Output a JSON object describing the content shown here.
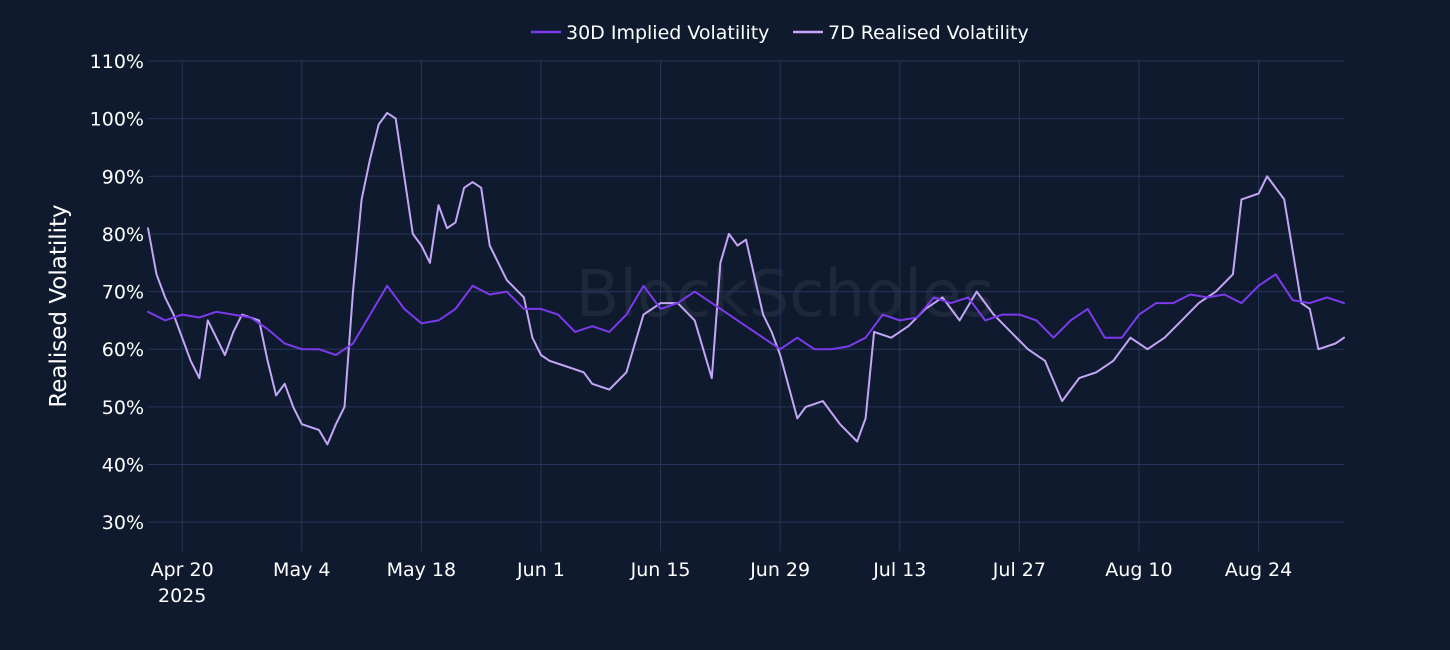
{
  "chart_data": {
    "type": "line",
    "title": "",
    "xlabel": "",
    "ylabel": "Realised Volatility",
    "ylim": [
      25,
      110
    ],
    "xlim": [
      "2025-04-16",
      "2025-09-03"
    ],
    "yticks": [
      30,
      40,
      50,
      60,
      70,
      80,
      90,
      100,
      110
    ],
    "ytick_labels": [
      "30%",
      "40%",
      "50%",
      "60%",
      "70%",
      "80%",
      "90%",
      "100%",
      "110%"
    ],
    "xticks": [
      "2025-04-20",
      "2025-05-04",
      "2025-05-18",
      "2025-06-01",
      "2025-06-15",
      "2025-06-29",
      "2025-07-13",
      "2025-07-27",
      "2025-08-10",
      "2025-08-24"
    ],
    "xtick_labels": [
      "Apr 20",
      "May 4",
      "May 18",
      "Jun 1",
      "Jun 15",
      "Jun 29",
      "Jul 13",
      "Jul 27",
      "Aug 10",
      "Aug 24"
    ],
    "xtick_sublabel": "2025",
    "grid": true,
    "legend_position": "top-center",
    "watermark": "BlockScholes",
    "series": [
      {
        "name": "30D Implied Volatility",
        "color": "#7c3aed",
        "x": [
          "2025-04-16",
          "2025-04-18",
          "2025-04-20",
          "2025-04-22",
          "2025-04-24",
          "2025-04-26",
          "2025-04-28",
          "2025-04-30",
          "2025-05-02",
          "2025-05-04",
          "2025-05-06",
          "2025-05-08",
          "2025-05-10",
          "2025-05-12",
          "2025-05-14",
          "2025-05-16",
          "2025-05-18",
          "2025-05-20",
          "2025-05-22",
          "2025-05-24",
          "2025-05-26",
          "2025-05-28",
          "2025-05-30",
          "2025-06-01",
          "2025-06-03",
          "2025-06-05",
          "2025-06-07",
          "2025-06-09",
          "2025-06-11",
          "2025-06-13",
          "2025-06-15",
          "2025-06-17",
          "2025-06-19",
          "2025-06-21",
          "2025-06-23",
          "2025-06-25",
          "2025-06-27",
          "2025-06-29",
          "2025-07-01",
          "2025-07-03",
          "2025-07-05",
          "2025-07-07",
          "2025-07-09",
          "2025-07-11",
          "2025-07-13",
          "2025-07-15",
          "2025-07-17",
          "2025-07-19",
          "2025-07-21",
          "2025-07-23",
          "2025-07-25",
          "2025-07-27",
          "2025-07-29",
          "2025-07-31",
          "2025-08-02",
          "2025-08-04",
          "2025-08-06",
          "2025-08-08",
          "2025-08-10",
          "2025-08-12",
          "2025-08-14",
          "2025-08-16",
          "2025-08-18",
          "2025-08-20",
          "2025-08-22",
          "2025-08-24",
          "2025-08-26",
          "2025-08-28",
          "2025-08-30",
          "2025-09-01",
          "2025-09-03"
        ],
        "y": [
          66.5,
          65,
          66,
          65.5,
          66.5,
          66,
          65.5,
          63.5,
          61,
          60,
          60,
          59,
          61,
          66,
          71,
          67,
          64.5,
          65,
          67,
          71,
          69.5,
          70,
          67,
          67,
          66,
          63,
          64,
          63,
          66,
          71,
          67,
          68,
          70,
          68,
          66,
          64,
          62,
          60,
          62,
          60,
          60,
          60.5,
          62,
          66,
          65,
          65.5,
          69,
          68,
          69,
          65,
          66,
          66,
          65,
          62,
          65,
          67,
          62,
          62,
          66,
          68,
          68,
          69.5,
          69,
          69.5,
          68,
          71,
          73,
          68.5,
          68,
          69,
          68
        ]
      },
      {
        "name": "7D Realised Volatility",
        "color": "#c4a6f7",
        "x": [
          "2025-04-16",
          "2025-04-17",
          "2025-04-18",
          "2025-04-19",
          "2025-04-21",
          "2025-04-22",
          "2025-04-23",
          "2025-04-25",
          "2025-04-26",
          "2025-04-27",
          "2025-04-29",
          "2025-04-30",
          "2025-05-01",
          "2025-05-02",
          "2025-05-03",
          "2025-05-04",
          "2025-05-06",
          "2025-05-07",
          "2025-05-08",
          "2025-05-09",
          "2025-05-10",
          "2025-05-11",
          "2025-05-12",
          "2025-05-13",
          "2025-05-14",
          "2025-05-15",
          "2025-05-17",
          "2025-05-18",
          "2025-05-19",
          "2025-05-20",
          "2025-05-21",
          "2025-05-22",
          "2025-05-23",
          "2025-05-24",
          "2025-05-25",
          "2025-05-26",
          "2025-05-28",
          "2025-05-30",
          "2025-05-31",
          "2025-06-01",
          "2025-06-02",
          "2025-06-04",
          "2025-06-06",
          "2025-06-07",
          "2025-06-09",
          "2025-06-11",
          "2025-06-13",
          "2025-06-14",
          "2025-06-15",
          "2025-06-17",
          "2025-06-19",
          "2025-06-21",
          "2025-06-22",
          "2025-06-23",
          "2025-06-24",
          "2025-06-25",
          "2025-06-27",
          "2025-06-28",
          "2025-06-29",
          "2025-07-01",
          "2025-07-02",
          "2025-07-04",
          "2025-07-06",
          "2025-07-08",
          "2025-07-09",
          "2025-07-10",
          "2025-07-12",
          "2025-07-14",
          "2025-07-16",
          "2025-07-18",
          "2025-07-20",
          "2025-07-22",
          "2025-07-24",
          "2025-07-26",
          "2025-07-28",
          "2025-07-30",
          "2025-08-01",
          "2025-08-03",
          "2025-08-05",
          "2025-08-07",
          "2025-08-09",
          "2025-08-11",
          "2025-08-13",
          "2025-08-15",
          "2025-08-17",
          "2025-08-19",
          "2025-08-21",
          "2025-08-22",
          "2025-08-24",
          "2025-08-25",
          "2025-08-27",
          "2025-08-29",
          "2025-08-30",
          "2025-08-31",
          "2025-09-02",
          "2025-09-03"
        ],
        "y": [
          81,
          73,
          69,
          66,
          58,
          55,
          65,
          59,
          63,
          66,
          65,
          58,
          52,
          54,
          50,
          47,
          46,
          43.5,
          47,
          50,
          70,
          86,
          93,
          99,
          101,
          100,
          80,
          78,
          75,
          85,
          81,
          82,
          88,
          89,
          88,
          78,
          72,
          69,
          62,
          59,
          58,
          57,
          56,
          54,
          53,
          56,
          66,
          67,
          68,
          68,
          65,
          55,
          75,
          80,
          78,
          79,
          66,
          63,
          59,
          48,
          50,
          51,
          47,
          44,
          48,
          63,
          62,
          64,
          67,
          69,
          65,
          70,
          66,
          63,
          60,
          58,
          51,
          55,
          56,
          58,
          62,
          60,
          62,
          65,
          68,
          70,
          73,
          86,
          87,
          90,
          86,
          68,
          67,
          60,
          61,
          62
        ]
      }
    ]
  }
}
